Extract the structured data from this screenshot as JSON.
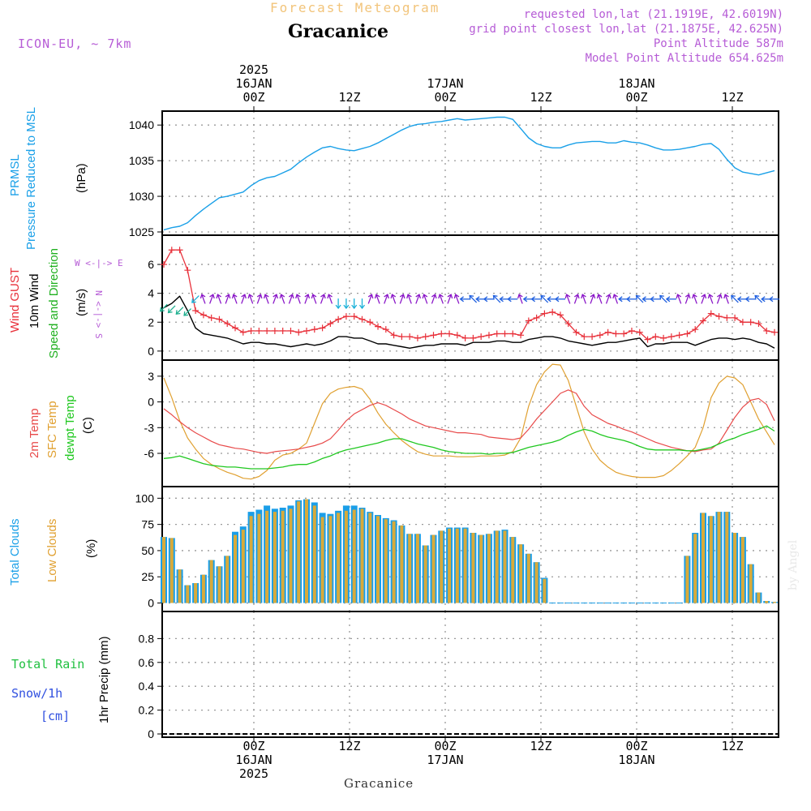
{
  "header": {
    "faint_title": "Forecast Meteogram",
    "location": "Gracanice",
    "model": "ICON-EU, ~ 7km",
    "info_lines": [
      "requested lon,lat (21.1919E, 42.6019N)",
      "grid point closest lon,lat (21.1875E, 42.625N)",
      "Point Altitude 587m",
      "Model Point Altitude 654.625m"
    ]
  },
  "time_axis": {
    "top_labels": [
      {
        "lines": [
          "2025",
          "16JAN",
          "00Z"
        ]
      },
      {
        "lines": [
          "12Z"
        ]
      },
      {
        "lines": [
          "17JAN",
          "00Z"
        ]
      },
      {
        "lines": [
          "12Z"
        ]
      },
      {
        "lines": [
          "18JAN",
          "00Z"
        ]
      },
      {
        "lines": [
          "12Z"
        ]
      }
    ],
    "bottom_labels": [
      {
        "lines": [
          "00Z",
          "16JAN",
          "2025"
        ]
      },
      {
        "lines": [
          "12Z"
        ]
      },
      {
        "lines": [
          "00Z",
          "17JAN"
        ]
      },
      {
        "lines": [
          "12Z"
        ]
      },
      {
        "lines": [
          "00Z",
          "18JAN"
        ]
      },
      {
        "lines": [
          "12Z"
        ]
      }
    ],
    "footer_label": "Gracanice"
  },
  "panel_labels": {
    "pressure": {
      "name": "PRMSL",
      "desc": "Pressure Reduced to MSL",
      "unit": "(hPa)"
    },
    "wind": {
      "gust": "Wind GUST",
      "wind": "10m Wind",
      "dir": "Speed and Direction",
      "unit": "(m/s)",
      "compass_ns": "N <-|-> S",
      "compass_we": "W <-|-> E"
    },
    "temp": {
      "t2m": "2m Temp",
      "sfc": "SFC Temp",
      "dewpt": "dewpt Temp",
      "unit": "(C)"
    },
    "clouds": {
      "total": "Total Clouds",
      "low": "Low Clouds",
      "unit": "(%)"
    },
    "precip": {
      "rain": "Total  Rain",
      "snow": "Snow/1h",
      "snow_unit": "[cm]",
      "axis": "1hr Precip (mm)"
    }
  },
  "signature": "by Angel",
  "colors": {
    "pressure": "#1aa0e8",
    "gust": "#e8303a",
    "wind": "#000000",
    "arrow_purple": "#8a16c8",
    "arrow_blue": "#2060e0",
    "arrow_cyan": "#18b0d8",
    "arrow_teal": "#20b090",
    "t2m": "#e84a4a",
    "sfc": "#e0a030",
    "dewpt": "#20c820",
    "total_clouds": "#1a9ee8",
    "low_clouds": "#d8aa3a",
    "rain": "#20c040",
    "snow": "#3050e0",
    "compass": "#b65cd6"
  },
  "chart_data": [
    {
      "type": "line",
      "name": "pressure",
      "x_start": "2025-01-15T15:00Z",
      "x_step_hours": 1,
      "ylim": [
        1025,
        1041.5
      ],
      "y_ticks": [
        1025,
        1030,
        1035,
        1040
      ],
      "series": [
        {
          "values": [
            1025.3,
            1025.6,
            1025.8,
            1026.3,
            1027.3,
            1028.2,
            1029.0,
            1029.8,
            1030.0,
            1030.3,
            1030.6,
            1031.5,
            1032.2,
            1032.6,
            1032.8,
            1033.3,
            1033.8,
            1034.7,
            1035.5,
            1036.2,
            1036.8,
            1037.0,
            1036.7,
            1036.5,
            1036.4,
            1036.7,
            1037.0,
            1037.5,
            1038.1,
            1038.7,
            1039.3,
            1039.8,
            1040.1,
            1040.2,
            1040.4,
            1040.5,
            1040.7,
            1040.9,
            1040.7,
            1040.8,
            1040.9,
            1041.0,
            1041.1,
            1041.1,
            1040.8,
            1039.5,
            1038.2,
            1037.4,
            1037.0,
            1036.8,
            1036.8,
            1037.2,
            1037.5,
            1037.6,
            1037.7,
            1037.7,
            1037.5,
            1037.5,
            1037.8,
            1037.6,
            1037.5,
            1037.2,
            1036.8,
            1036.5,
            1036.5,
            1036.6,
            1036.8,
            1037.0,
            1037.3,
            1037.4,
            1036.6,
            1035.2,
            1034.0,
            1033.4,
            1033.2,
            1033.0,
            1033.3,
            1033.6
          ]
        }
      ]
    },
    {
      "type": "line",
      "name": "wind",
      "x_start": "2025-01-15T15:00Z",
      "x_step_hours": 1,
      "ylim": [
        -0.4,
        7.8
      ],
      "y_ticks": [
        0,
        2,
        4,
        6
      ],
      "series": [
        {
          "values": [
            6.0,
            7.0,
            7.0,
            5.6,
            2.8,
            2.5,
            2.3,
            2.2,
            1.9,
            1.6,
            1.3,
            1.4,
            1.4,
            1.4,
            1.4,
            1.4,
            1.4,
            1.3,
            1.4,
            1.5,
            1.6,
            1.9,
            2.2,
            2.4,
            2.4,
            2.2,
            2.0,
            1.7,
            1.5,
            1.1,
            1.0,
            1.0,
            0.9,
            1.0,
            1.1,
            1.2,
            1.2,
            1.1,
            0.9,
            0.9,
            1.0,
            1.1,
            1.2,
            1.2,
            1.2,
            1.1,
            2.1,
            2.3,
            2.6,
            2.7,
            2.5,
            1.9,
            1.3,
            1.0,
            1.0,
            1.1,
            1.3,
            1.2,
            1.2,
            1.4,
            1.3,
            0.8,
            1.0,
            0.9,
            1.0,
            1.1,
            1.2,
            1.5,
            2.1,
            2.6,
            2.4,
            2.3,
            2.3,
            2.0,
            2.0,
            1.9,
            1.4,
            1.3
          ]
        },
        {
          "values": [
            3.0,
            3.3,
            3.8,
            2.8,
            1.6,
            1.2,
            1.1,
            1.0,
            0.9,
            0.7,
            0.5,
            0.6,
            0.6,
            0.5,
            0.5,
            0.4,
            0.3,
            0.4,
            0.5,
            0.4,
            0.5,
            0.7,
            1.0,
            1.0,
            0.9,
            0.9,
            0.7,
            0.5,
            0.5,
            0.4,
            0.3,
            0.2,
            0.3,
            0.4,
            0.4,
            0.5,
            0.5,
            0.5,
            0.4,
            0.6,
            0.6,
            0.6,
            0.7,
            0.7,
            0.6,
            0.6,
            0.8,
            0.9,
            1.0,
            1.0,
            0.9,
            0.7,
            0.6,
            0.5,
            0.4,
            0.5,
            0.6,
            0.6,
            0.7,
            0.8,
            0.9,
            0.3,
            0.5,
            0.5,
            0.6,
            0.6,
            0.6,
            0.4,
            0.6,
            0.8,
            0.9,
            0.9,
            0.8,
            0.9,
            0.8,
            0.6,
            0.5,
            0.2
          ]
        }
      ]
    },
    {
      "type": "line",
      "name": "temperature",
      "x_start": "2025-01-15T15:00Z",
      "x_step_hours": 1,
      "ylim": [
        -9.5,
        4.5
      ],
      "y_ticks": [
        -6,
        -3,
        0,
        3
      ],
      "series": [
        {
          "values": [
            -0.8,
            -1.5,
            -2.3,
            -3.0,
            -3.6,
            -4.1,
            -4.6,
            -5.0,
            -5.2,
            -5.4,
            -5.5,
            -5.7,
            -5.9,
            -6.0,
            -5.8,
            -5.7,
            -5.6,
            -5.5,
            -5.3,
            -5.1,
            -4.8,
            -4.3,
            -3.3,
            -2.2,
            -1.4,
            -0.9,
            -0.4,
            -0.1,
            -0.4,
            -0.9,
            -1.4,
            -2.0,
            -2.4,
            -2.8,
            -3.0,
            -3.2,
            -3.4,
            -3.6,
            -3.6,
            -3.7,
            -3.8,
            -4.1,
            -4.2,
            -4.3,
            -4.4,
            -4.2,
            -3.2,
            -2.0,
            -1.0,
            0.0,
            1.0,
            1.4,
            1.0,
            -0.5,
            -1.5,
            -2.0,
            -2.5,
            -2.8,
            -3.2,
            -3.5,
            -3.9,
            -4.3,
            -4.7,
            -5.0,
            -5.3,
            -5.5,
            -5.7,
            -5.8,
            -5.6,
            -5.5,
            -4.8,
            -3.3,
            -1.8,
            -0.6,
            0.2,
            0.4,
            -0.3,
            -2.2
          ]
        },
        {
          "values": [
            2.8,
            0.5,
            -2.2,
            -4.2,
            -5.5,
            -6.6,
            -7.3,
            -7.8,
            -8.2,
            -8.5,
            -8.9,
            -9.0,
            -8.7,
            -8.0,
            -6.8,
            -6.2,
            -6.0,
            -5.5,
            -4.8,
            -2.5,
            -0.2,
            1.0,
            1.5,
            1.7,
            1.8,
            1.5,
            0.3,
            -1.3,
            -2.6,
            -3.6,
            -4.5,
            -5.2,
            -5.8,
            -6.1,
            -6.3,
            -6.3,
            -6.3,
            -6.4,
            -6.4,
            -6.4,
            -6.3,
            -6.3,
            -6.3,
            -6.2,
            -5.8,
            -4.2,
            -0.5,
            2.0,
            3.5,
            4.4,
            4.3,
            2.5,
            -0.5,
            -3.5,
            -5.5,
            -6.8,
            -7.6,
            -8.2,
            -8.5,
            -8.7,
            -8.8,
            -8.8,
            -8.8,
            -8.6,
            -8.0,
            -7.2,
            -6.3,
            -5.3,
            -3.0,
            0.5,
            2.2,
            3.0,
            2.8,
            2.0,
            0.0,
            -2.0,
            -3.5,
            -5.0
          ]
        },
        {
          "values": [
            -6.6,
            -6.5,
            -6.3,
            -6.6,
            -6.9,
            -7.2,
            -7.4,
            -7.5,
            -7.6,
            -7.6,
            -7.7,
            -7.8,
            -7.8,
            -7.8,
            -7.7,
            -7.6,
            -7.4,
            -7.3,
            -7.3,
            -7.0,
            -6.6,
            -6.3,
            -5.9,
            -5.6,
            -5.4,
            -5.2,
            -5.0,
            -4.8,
            -4.5,
            -4.3,
            -4.3,
            -4.6,
            -4.9,
            -5.1,
            -5.3,
            -5.6,
            -5.8,
            -5.9,
            -6.0,
            -6.0,
            -6.0,
            -6.1,
            -6.0,
            -6.0,
            -5.9,
            -5.6,
            -5.3,
            -5.1,
            -4.9,
            -4.7,
            -4.4,
            -3.9,
            -3.5,
            -3.2,
            -3.4,
            -3.8,
            -4.1,
            -4.3,
            -4.5,
            -4.8,
            -5.2,
            -5.5,
            -5.6,
            -5.6,
            -5.6,
            -5.6,
            -5.7,
            -5.7,
            -5.5,
            -5.3,
            -4.9,
            -4.5,
            -4.2,
            -3.8,
            -3.5,
            -3.2,
            -2.8,
            -3.4
          ]
        }
      ]
    },
    {
      "type": "bar",
      "name": "clouds",
      "x_start": "2025-01-15T15:00Z",
      "x_step_hours": 1,
      "ylim": [
        -5,
        108
      ],
      "y_ticks": [
        0,
        25,
        50,
        75,
        100
      ],
      "series": [
        {
          "values": [
            63,
            62,
            32,
            17,
            19,
            27,
            41,
            35,
            45,
            68,
            73,
            87,
            89,
            93,
            90,
            91,
            93,
            98,
            99,
            96,
            86,
            85,
            88,
            93,
            93,
            91,
            87,
            84,
            81,
            79,
            74,
            66,
            66,
            55,
            65,
            69,
            72,
            72,
            72,
            67,
            65,
            66,
            69,
            70,
            63,
            56,
            47,
            39,
            24,
            0,
            0,
            0,
            0,
            0,
            0,
            0,
            0,
            0,
            0,
            0,
            0,
            0,
            0,
            0,
            0,
            0,
            45,
            67,
            86,
            83,
            87,
            87,
            67,
            63,
            37,
            10,
            2,
            1
          ]
        },
        {
          "values": [
            63,
            62,
            32,
            17,
            19,
            27,
            41,
            35,
            45,
            65,
            70,
            83,
            85,
            88,
            87,
            88,
            90,
            97,
            99,
            93,
            82,
            83,
            86,
            88,
            89,
            90,
            86,
            83,
            80,
            78,
            74,
            66,
            66,
            55,
            65,
            69,
            71,
            71,
            71,
            67,
            65,
            66,
            69,
            69,
            63,
            56,
            47,
            39,
            23,
            0,
            0,
            0,
            0,
            0,
            0,
            0,
            0,
            0,
            0,
            0,
            0,
            0,
            0,
            0,
            0,
            0,
            45,
            66,
            86,
            83,
            87,
            87,
            67,
            63,
            37,
            10,
            2,
            1
          ]
        }
      ]
    },
    {
      "type": "bar",
      "name": "precip",
      "ylim": [
        0,
        1.0
      ],
      "y_ticks": [
        0,
        0.2,
        0.4,
        0.6,
        0.8
      ],
      "series": []
    }
  ]
}
